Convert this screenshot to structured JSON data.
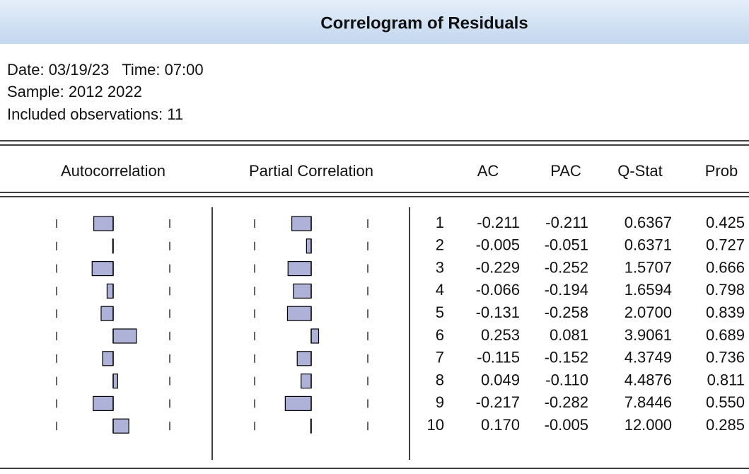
{
  "header": {
    "title": "Correlogram of Residuals"
  },
  "info": [
    "Date: 03/19/23   Time: 07:00",
    "Sample: 2012 2022",
    "Included observations: 11"
  ],
  "table": {
    "columns": [
      "Autocorrelation",
      "Partial Correlation",
      "AC",
      "PAC",
      "Q-Stat",
      "Prob"
    ],
    "rows": [
      {
        "lag": "1",
        "ac": "-0.211",
        "pac": "-0.211",
        "qstat": "0.6367",
        "prob": "0.425"
      },
      {
        "lag": "2",
        "ac": "-0.005",
        "pac": "-0.051",
        "qstat": "0.6371",
        "prob": "0.727"
      },
      {
        "lag": "3",
        "ac": "-0.229",
        "pac": "-0.252",
        "qstat": "1.5707",
        "prob": "0.666"
      },
      {
        "lag": "4",
        "ac": "-0.066",
        "pac": "-0.194",
        "qstat": "1.6594",
        "prob": "0.798"
      },
      {
        "lag": "5",
        "ac": "-0.131",
        "pac": "-0.258",
        "qstat": "2.0700",
        "prob": "0.839"
      },
      {
        "lag": "6",
        "ac": "0.253",
        "pac": "0.081",
        "qstat": "3.9061",
        "prob": "0.689"
      },
      {
        "lag": "7",
        "ac": "-0.115",
        "pac": "-0.152",
        "qstat": "4.3749",
        "prob": "0.736"
      },
      {
        "lag": "8",
        "ac": "0.049",
        "pac": "-0.110",
        "qstat": "4.4876",
        "prob": "0.811"
      },
      {
        "lag": "9",
        "ac": "-0.217",
        "pac": "-0.282",
        "qstat": "7.8446",
        "prob": "0.550"
      },
      {
        "lag": "10",
        "ac": "0.170",
        "pac": "-0.005",
        "qstat": "12.000",
        "prob": "0.285"
      }
    ]
  }
}
